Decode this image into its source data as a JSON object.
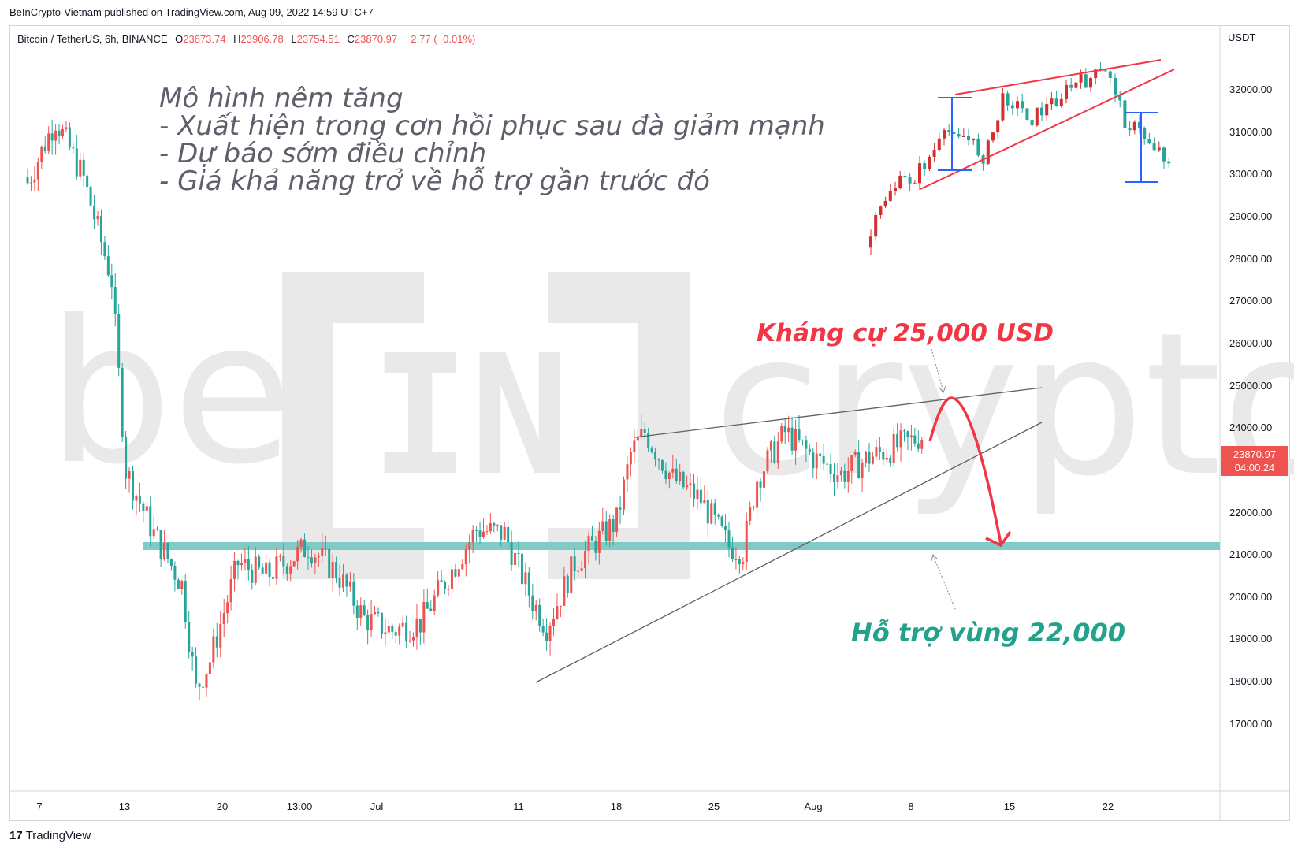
{
  "published": "BeInCrypto-Vietnam published on TradingView.com, Aug 09, 2022 14:59 UTC+7",
  "symbol": {
    "name": "Bitcoin / TetherUS, 6h, BINANCE",
    "o_label": "O",
    "o": "23873.74",
    "h_label": "H",
    "h": "23906.78",
    "l_label": "L",
    "l": "23754.51",
    "c_label": "C",
    "c": "23870.97",
    "change": "−2.77 (−0.01%)"
  },
  "currency": "USDT",
  "price_tag": {
    "price": "23870.97",
    "countdown": "04:00:24"
  },
  "yaxis_labels": [
    "32000.00",
    "31000.00",
    "30000.00",
    "29000.00",
    "28000.00",
    "27000.00",
    "26000.00",
    "25000.00",
    "24000.00",
    "23000.00",
    "22000.00",
    "21000.00",
    "20000.00",
    "19000.00",
    "18000.00",
    "17000.00"
  ],
  "xaxis_labels": [
    "7",
    "13",
    "20",
    "13:00",
    "Jul",
    "11",
    "18",
    "25",
    "Aug",
    "8",
    "15",
    "22"
  ],
  "annotation": {
    "lines": [
      "Mô hình nêm tăng",
      "- Xuất hiện trong cơn hồi phục sau đà giảm mạnh",
      "- Dự báo sớm điều chỉnh",
      "- Giá khả năng trở về hỗ trợ gần trước đó"
    ],
    "resistance": "Kháng cự 25,000 USD",
    "support": "Hỗ trợ vùng 22,000"
  },
  "watermark": "beincrypto",
  "footer": {
    "brand": "TradingView",
    "logo": "17"
  },
  "colors": {
    "up": "#26a69a",
    "down": "#ef5350",
    "support_zone": "#80cbc4",
    "arrow": "#f23645",
    "resistance_text": "#f23645",
    "support_text": "#22a28a",
    "wedge_line": "#616161",
    "inset_wedge": "#f23645",
    "inset_marker": "#2962ff"
  },
  "chart_data": {
    "type": "candlestick",
    "title": "Bitcoin / TetherUS, 6h, BINANCE",
    "ylim": [
      16500,
      33000
    ],
    "y_ticks": [
      17000,
      18000,
      19000,
      20000,
      21000,
      22000,
      23000,
      24000,
      25000,
      26000,
      27000,
      28000,
      29000,
      30000,
      31000,
      32000
    ],
    "last_price": 23870.97,
    "resistance_level": 25000,
    "support_zone": [
      21750,
      21900
    ],
    "rising_wedge": {
      "upper": [
        {
          "x": "Jul 18",
          "y": 24300
        },
        {
          "x": "Aug 15",
          "y": 25350
        }
      ],
      "lower": [
        {
          "x": "Jul 12",
          "y": 18700
        },
        {
          "x": "Aug 15",
          "y": 24550
        }
      ]
    },
    "projection": [
      {
        "x": "Aug 9",
        "y": 24100
      },
      {
        "x": "Aug 11",
        "y": 25000
      },
      {
        "x": "Aug 14",
        "y": 21800
      }
    ],
    "path_points": [
      [
        "Jun 6",
        29800
      ],
      [
        "Jun 8",
        31300
      ],
      [
        "Jun 10",
        29900
      ],
      [
        "Jun 12",
        27500
      ],
      [
        "Jun 13",
        23000
      ],
      [
        "Jun 15",
        21500
      ],
      [
        "Jun 17",
        20300
      ],
      [
        "Jun 18",
        17800
      ],
      [
        "Jun 19",
        18500
      ],
      [
        "Jun 21",
        20800
      ],
      [
        "Jun 23",
        20500
      ],
      [
        "Jun 26",
        21200
      ],
      [
        "Jun 28",
        20600
      ],
      [
        "Jun 30",
        19500
      ],
      [
        "Jul 2",
        19200
      ],
      [
        "Jul 4",
        19400
      ],
      [
        "Jul 6",
        20500
      ],
      [
        "Jul 8",
        21600
      ],
      [
        "Jul 10",
        21500
      ],
      [
        "Jul 12",
        19900
      ],
      [
        "Jul 13",
        19300
      ],
      [
        "Jul 15",
        20800
      ],
      [
        "Jul 18",
        21800
      ],
      [
        "Jul 19",
        23400
      ],
      [
        "Jul 20",
        23900
      ],
      [
        "Jul 22",
        22800
      ],
      [
        "Jul 24",
        22300
      ],
      [
        "Jul 26",
        21200
      ],
      [
        "Jul 27",
        21100
      ],
      [
        "Jul 28",
        22800
      ],
      [
        "Jul 30",
        23900
      ],
      [
        "Aug 1",
        23300
      ],
      [
        "Aug 3",
        22900
      ],
      [
        "Aug 5",
        23300
      ],
      [
        "Aug 8",
        23700
      ],
      [
        "Aug 9",
        23870
      ]
    ],
    "inset": {
      "type": "candlestick",
      "description_points": [
        [
          "start",
          28100
        ],
        [
          "rally",
          30400
        ],
        [
          "peak",
          32400
        ],
        [
          "end",
          30200
        ]
      ],
      "wedge_upper": [
        [
          31900
        ],
        [
          32800
        ]
      ],
      "wedge_lower": [
        [
          29800
        ],
        [
          32700
        ]
      ]
    }
  }
}
